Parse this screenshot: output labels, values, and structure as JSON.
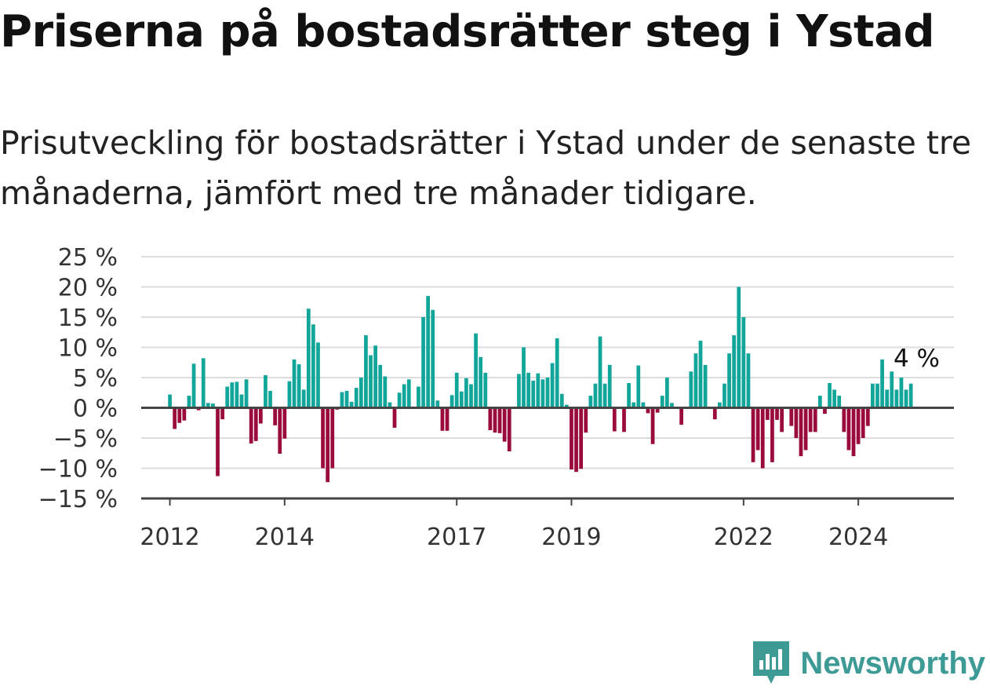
{
  "title": "Priserna på bostadsrätter steg i Ystad",
  "subtitle": "Prisutveckling för bostadsrätter i Ystad under de senaste tre månaderna, jämfört med tre månader tidigare.",
  "brand": {
    "name": "Newsworthy",
    "icon": "newsworthy-logo-icon",
    "color": "#3e9a95"
  },
  "chart_data": {
    "type": "bar",
    "ylim": [
      -15,
      25
    ],
    "yticks": [
      25,
      20,
      15,
      10,
      5,
      0,
      -5,
      -10,
      -15
    ],
    "ytick_labels": [
      "25 %",
      "20 %",
      "15 %",
      "10 %",
      "5 %",
      "0 %",
      "−5 %",
      "−10 %",
      "−15 %"
    ],
    "xlim": [
      "2011-07",
      "2025-09"
    ],
    "xticks": [
      "2012-01",
      "2014-01",
      "2017-01",
      "2019-01",
      "2022-01",
      "2024-01"
    ],
    "xtick_labels": [
      "2012",
      "2014",
      "2017",
      "2019",
      "2022",
      "2024"
    ],
    "grid": true,
    "colors": {
      "positive": "#12a59a",
      "negative": "#9b0a3c",
      "grid": "#dcdcdc",
      "axis": "#444444"
    },
    "annotation": {
      "text": "4 %",
      "x": "2024-12",
      "value": 4
    },
    "start": "2012-01",
    "values": [
      2.2,
      -3.5,
      -2.5,
      -2.1,
      2.0,
      7.3,
      -0.4,
      8.2,
      0.8,
      0.7,
      -11.3,
      -1.9,
      3.5,
      4.2,
      4.3,
      2.2,
      4.7,
      -5.9,
      -5.5,
      -2.6,
      5.4,
      2.8,
      -2.9,
      -7.6,
      -5.1,
      4.4,
      8.0,
      7.2,
      3.0,
      16.4,
      13.8,
      10.8,
      -10.0,
      -12.3,
      -10.0,
      -0.3,
      2.6,
      2.8,
      1.0,
      3.3,
      5.0,
      12.0,
      8.7,
      10.3,
      7.1,
      5.2,
      0.9,
      -3.3,
      2.5,
      3.9,
      4.7,
      0.0,
      3.5,
      15.0,
      18.5,
      16.2,
      1.2,
      -3.8,
      -3.8,
      2.1,
      5.8,
      2.7,
      4.9,
      3.9,
      12.3,
      8.4,
      5.8,
      -3.7,
      -4.1,
      -4.2,
      -5.6,
      -7.2,
      0.0,
      5.6,
      10.0,
      5.8,
      4.5,
      5.7,
      4.7,
      5.0,
      7.4,
      11.5,
      2.3,
      0.5,
      -10.2,
      -10.6,
      -10.1,
      -4.1,
      2.0,
      4.0,
      11.8,
      4.0,
      7.1,
      -3.9,
      0.0,
      -4.0,
      4.1,
      0.9,
      7.0,
      0.9,
      -0.9,
      -6.0,
      -0.8,
      2.0,
      5.0,
      0.8,
      0.0,
      -2.8,
      0.0,
      6.0,
      9.0,
      11.1,
      7.1,
      0.0,
      -1.9,
      0.9,
      4.0,
      9.0,
      12.0,
      20.0,
      15.0,
      9.0,
      -9.0,
      -7.0,
      -10.0,
      -2.0,
      -9.0,
      -2.0,
      -4.0,
      0.0,
      -3.0,
      -5.0,
      -8.0,
      -7.0,
      -4.0,
      -4.0,
      2.0,
      -1.0,
      4.1,
      3.0,
      2.0,
      -4.0,
      -7.0,
      -8.0,
      -6.0,
      -5.0,
      -3.0,
      4.0,
      4.0,
      8.0,
      3.0,
      6.0,
      3.0,
      5.0,
      3.0,
      4.0
    ]
  }
}
